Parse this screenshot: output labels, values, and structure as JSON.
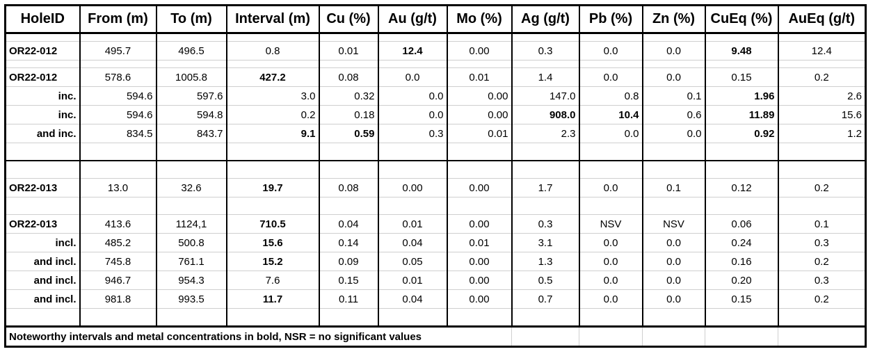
{
  "table": {
    "headers": [
      "HoleID",
      "From (m)",
      "To (m)",
      "Interval (m)",
      "Cu (%)",
      "Au (g/t)",
      "Mo (%)",
      "Ag (g/t)",
      "Pb (%)",
      "Zn (%)",
      "CuEq (%)",
      "AuEq (g/t)"
    ],
    "rows": [
      {
        "cells": [
          "OR22-012",
          "495.7",
          "496.5",
          "0.8",
          "0.01",
          "12.4",
          "0.00",
          "0.3",
          "0.0",
          "0.0",
          "9.48",
          "12.4"
        ]
      },
      {
        "cells": [
          "OR22-012",
          "578.6",
          "1005.8",
          "427.2",
          "0.08",
          "0.0",
          "0.01",
          "1.4",
          "0.0",
          "0.0",
          "0.15",
          "0.2"
        ]
      },
      {
        "cells": [
          "inc.",
          "594.6",
          "597.6",
          "3.0",
          "0.32",
          "0.0",
          "0.00",
          "147.0",
          "0.8",
          "0.1",
          "1.96",
          "2.6"
        ]
      },
      {
        "cells": [
          "inc.",
          "594.6",
          "594.8",
          "0.2",
          "0.18",
          "0.0",
          "0.00",
          "908.0",
          "10.4",
          "0.6",
          "11.89",
          "15.6"
        ]
      },
      {
        "cells": [
          "and inc.",
          "834.5",
          "843.7",
          "9.1",
          "0.59",
          "0.3",
          "0.01",
          "2.3",
          "0.0",
          "0.0",
          "0.92",
          "1.2"
        ]
      },
      {
        "cells": [
          "OR22-013",
          "13.0",
          "32.6",
          "19.7",
          "0.08",
          "0.00",
          "0.00",
          "1.7",
          "0.0",
          "0.1",
          "0.12",
          "0.2"
        ]
      },
      {
        "cells": [
          "OR22-013",
          "413.6",
          "1124,1",
          "710.5",
          "0.04",
          "0.01",
          "0.00",
          "0.3",
          "NSV",
          "NSV",
          "0.06",
          "0.1"
        ]
      },
      {
        "cells": [
          "incl.",
          "485.2",
          "500.8",
          "15.6",
          "0.14",
          "0.04",
          "0.01",
          "3.1",
          "0.0",
          "0.0",
          "0.24",
          "0.3"
        ]
      },
      {
        "cells": [
          "and incl.",
          "745.8",
          "761.1",
          "15.2",
          "0.09",
          "0.05",
          "0.00",
          "1.3",
          "0.0",
          "0.0",
          "0.16",
          "0.2"
        ]
      },
      {
        "cells": [
          "and incl.",
          "946.7",
          "954.3",
          "7.6",
          "0.15",
          "0.01",
          "0.00",
          "0.5",
          "0.0",
          "0.0",
          "0.20",
          "0.3"
        ]
      },
      {
        "cells": [
          "and incl.",
          "981.8",
          "993.5",
          "11.7",
          "0.11",
          "0.04",
          "0.00",
          "0.7",
          "0.0",
          "0.0",
          "0.15",
          "0.2"
        ]
      }
    ],
    "note": "Noteworthy intervals and metal concentrations in bold, NSR = no significant values"
  }
}
